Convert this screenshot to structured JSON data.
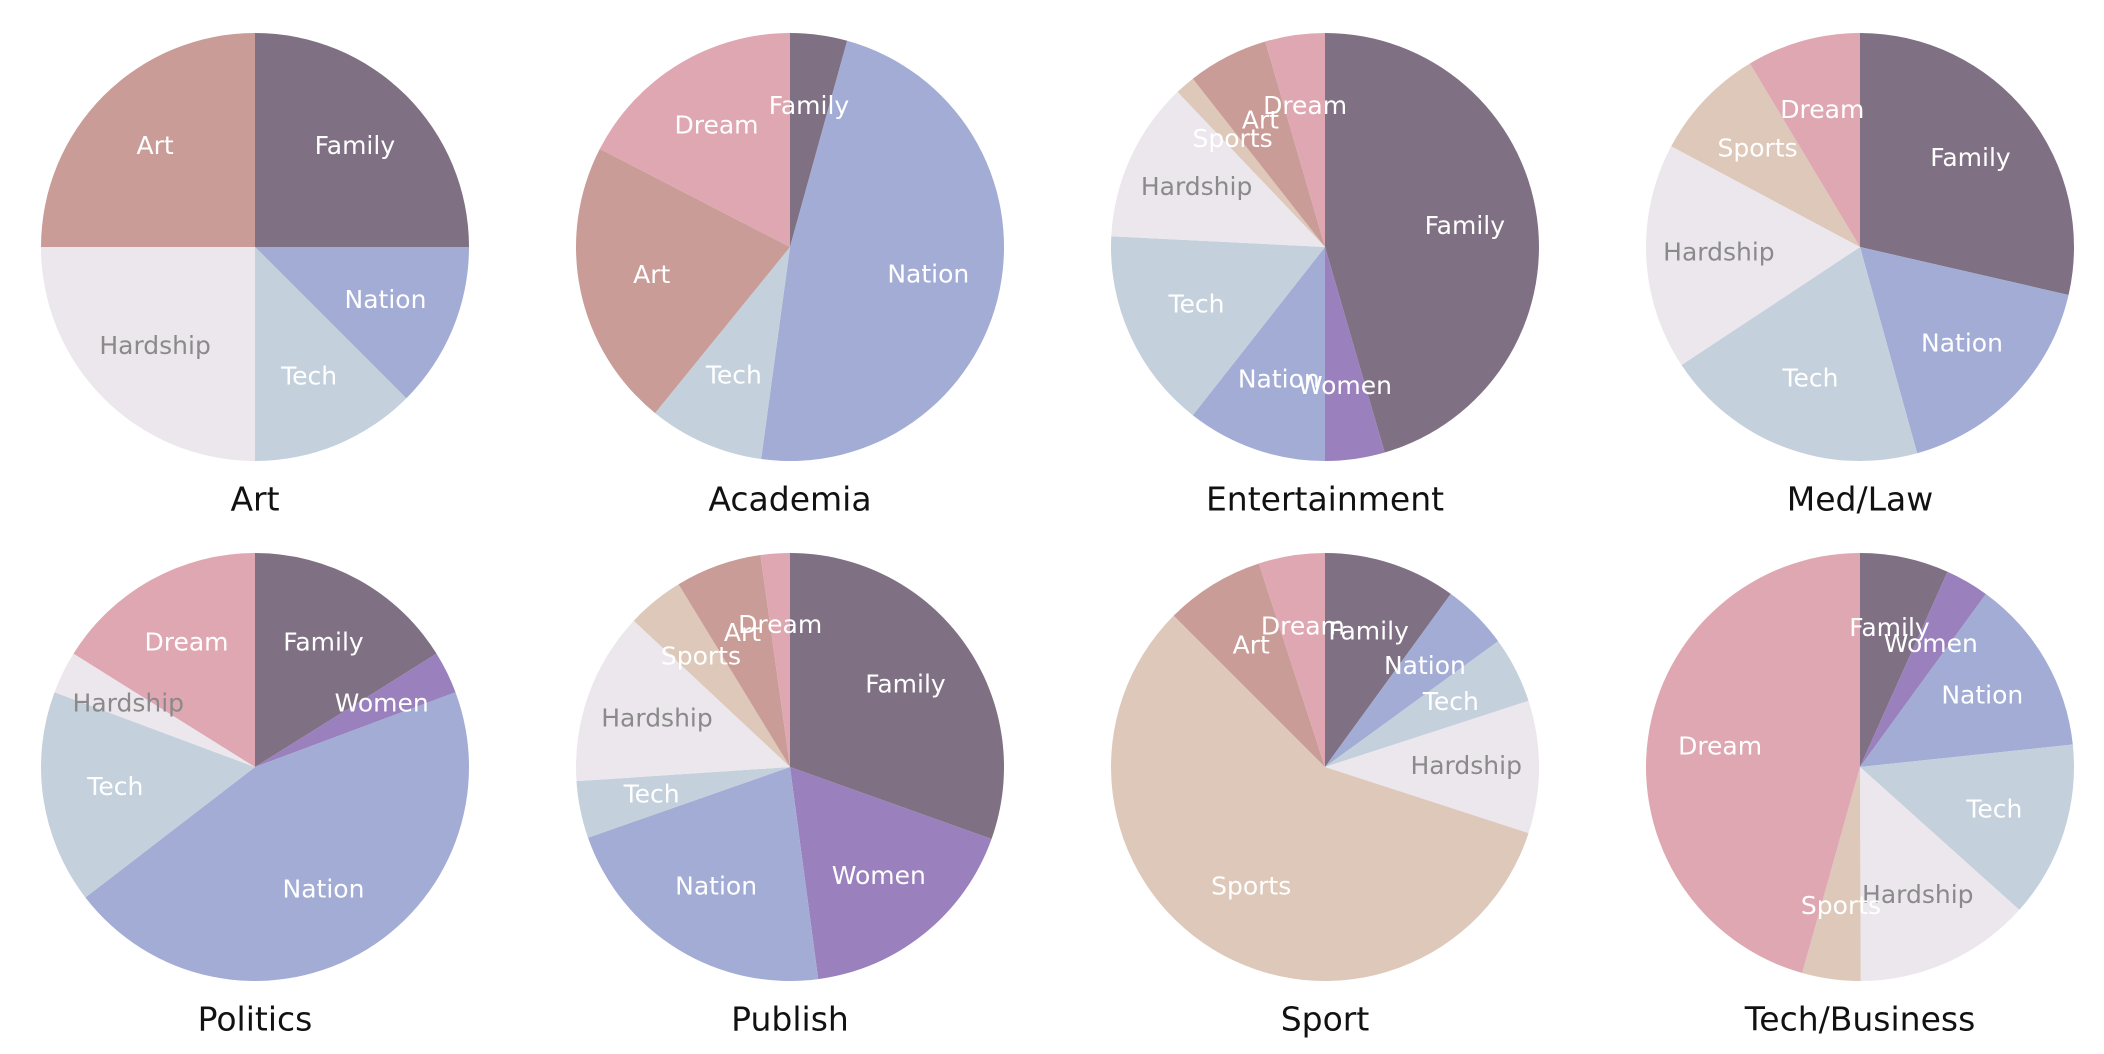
{
  "colors": {
    "Family": "#7f7183",
    "Women": "#9a80bc",
    "Nation": "#a2acd5",
    "Tech": "#c4d1dc",
    "Hardship": "#ece7ed",
    "Sports": "#ddc8b9",
    "Art": "#c99c97",
    "Dream": "#dfa7b1"
  },
  "label_colors": {
    "light": "#ffffff",
    "dark": "#8a8a8a"
  },
  "chart_data": [
    {
      "type": "pie",
      "title": "Art",
      "slices": [
        {
          "label": "Family",
          "value": 25
        },
        {
          "label": "Nation",
          "value": 12.5
        },
        {
          "label": "Tech",
          "value": 12.5
        },
        {
          "label": "Hardship",
          "value": 25
        },
        {
          "label": "Art",
          "value": 25
        }
      ]
    },
    {
      "type": "pie",
      "title": "Academia",
      "slices": [
        {
          "label": "Family",
          "value": 4.3
        },
        {
          "label": "Nation",
          "value": 47.8
        },
        {
          "label": "Tech",
          "value": 8.7
        },
        {
          "label": "Art",
          "value": 21.7
        },
        {
          "label": "Dream",
          "value": 17.4
        }
      ]
    },
    {
      "type": "pie",
      "title": "Entertainment",
      "slices": [
        {
          "label": "Family",
          "value": 45.5
        },
        {
          "label": "Women",
          "value": 4.5
        },
        {
          "label": "Nation",
          "value": 10.6
        },
        {
          "label": "Tech",
          "value": 15.2
        },
        {
          "label": "Hardship",
          "value": 12.1
        },
        {
          "label": "Sports",
          "value": 1.5
        },
        {
          "label": "Art",
          "value": 6.1
        },
        {
          "label": "Dream",
          "value": 4.5
        }
      ]
    },
    {
      "type": "pie",
      "title": "Med/Law",
      "slices": [
        {
          "label": "Family",
          "value": 28.6
        },
        {
          "label": "Nation",
          "value": 17.1
        },
        {
          "label": "Tech",
          "value": 20
        },
        {
          "label": "Hardship",
          "value": 17.1
        },
        {
          "label": "Sports",
          "value": 8.6
        },
        {
          "label": "Dream",
          "value": 8.6
        }
      ]
    },
    {
      "type": "pie",
      "title": "Politics",
      "slices": [
        {
          "label": "Family",
          "value": 16.1
        },
        {
          "label": "Women",
          "value": 3.2
        },
        {
          "label": "Nation",
          "value": 45.2
        },
        {
          "label": "Tech",
          "value": 16.1
        },
        {
          "label": "Hardship",
          "value": 3.2
        },
        {
          "label": "Dream",
          "value": 16.1
        }
      ]
    },
    {
      "type": "pie",
      "title": "Publish",
      "slices": [
        {
          "label": "Family",
          "value": 30.4
        },
        {
          "label": "Women",
          "value": 17.4
        },
        {
          "label": "Nation",
          "value": 21.7
        },
        {
          "label": "Tech",
          "value": 4.3
        },
        {
          "label": "Hardship",
          "value": 13
        },
        {
          "label": "Sports",
          "value": 4.3
        },
        {
          "label": "Art",
          "value": 6.5
        },
        {
          "label": "Dream",
          "value": 2.2
        }
      ]
    },
    {
      "type": "pie",
      "title": "Sport",
      "slices": [
        {
          "label": "Family",
          "value": 10
        },
        {
          "label": "Nation",
          "value": 5
        },
        {
          "label": "Tech",
          "value": 5
        },
        {
          "label": "Hardship",
          "value": 10
        },
        {
          "label": "Sports",
          "value": 57.5
        },
        {
          "label": "Art",
          "value": 7.5
        },
        {
          "label": "Dream",
          "value": 5
        }
      ]
    },
    {
      "type": "pie",
      "title": "Tech/Business",
      "slices": [
        {
          "label": "Family",
          "value": 6.7
        },
        {
          "label": "Women",
          "value": 3.3
        },
        {
          "label": "Nation",
          "value": 13.3
        },
        {
          "label": "Tech",
          "value": 13.3
        },
        {
          "label": "Hardship",
          "value": 13.3
        },
        {
          "label": "Sports",
          "value": 4.4
        },
        {
          "label": "Dream",
          "value": 45.6
        }
      ]
    }
  ]
}
